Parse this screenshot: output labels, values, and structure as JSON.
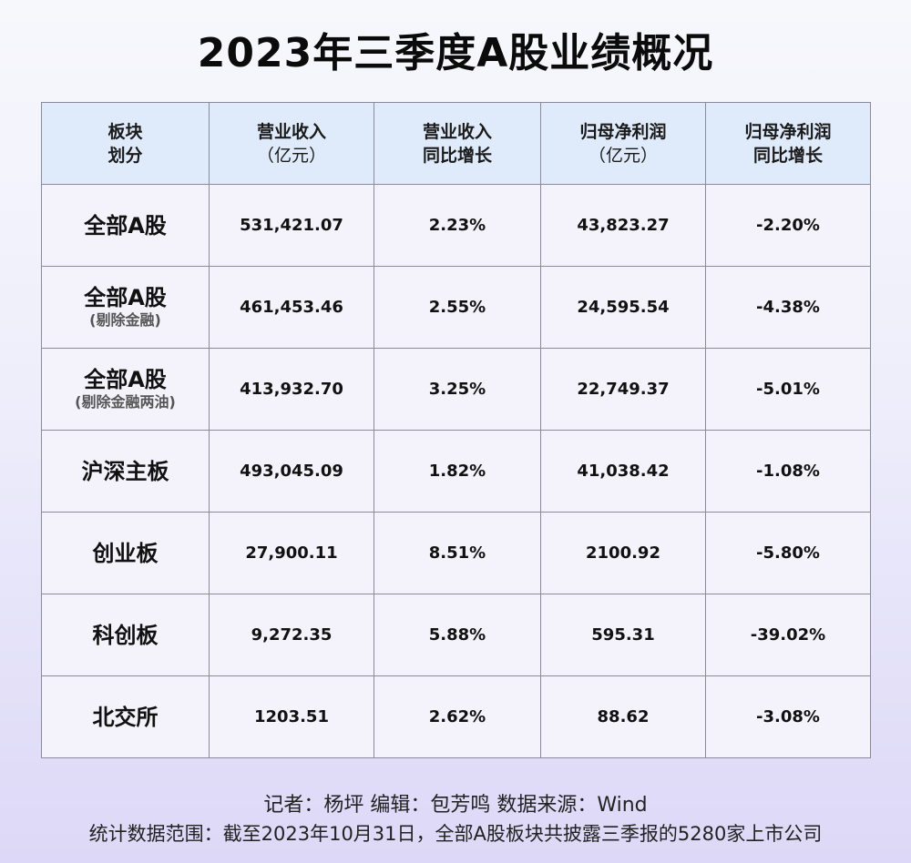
{
  "title": "2023年三季度A股业绩概况",
  "chart_data": {
    "type": "table",
    "columns": [
      {
        "line1": "板块",
        "line2": "划分"
      },
      {
        "line1": "营业收入",
        "line2": "（亿元）"
      },
      {
        "line1": "营业收入",
        "line2": "同比增长"
      },
      {
        "line1": "归母净利润",
        "line2": "（亿元）"
      },
      {
        "line1": "归母净利润",
        "line2": "同比增长"
      }
    ],
    "rows": [
      {
        "category": "全部A股",
        "note": "",
        "revenue": "531,421.07",
        "revenue_yoy": "2.23%",
        "net_profit": "43,823.27",
        "net_profit_yoy": "-2.20%"
      },
      {
        "category": "全部A股",
        "note": "(剔除金融)",
        "revenue": "461,453.46",
        "revenue_yoy": "2.55%",
        "net_profit": "24,595.54",
        "net_profit_yoy": "-4.38%"
      },
      {
        "category": "全部A股",
        "note": "(剔除金融两油)",
        "revenue": "413,932.70",
        "revenue_yoy": "3.25%",
        "net_profit": "22,749.37",
        "net_profit_yoy": "-5.01%"
      },
      {
        "category": "沪深主板",
        "note": "",
        "revenue": "493,045.09",
        "revenue_yoy": "1.82%",
        "net_profit": "41,038.42",
        "net_profit_yoy": "-1.08%"
      },
      {
        "category": "创业板",
        "note": "",
        "revenue": "27,900.11",
        "revenue_yoy": "8.51%",
        "net_profit": "2100.92",
        "net_profit_yoy": "-5.80%"
      },
      {
        "category": "科创板",
        "note": "",
        "revenue": "9,272.35",
        "revenue_yoy": "5.88%",
        "net_profit": "595.31",
        "net_profit_yoy": "-39.02%"
      },
      {
        "category": "北交所",
        "note": "",
        "revenue": "1203.51",
        "revenue_yoy": "2.62%",
        "net_profit": "88.62",
        "net_profit_yoy": "-3.08%"
      }
    ]
  },
  "footer": {
    "credits": "记者：杨坪  编辑：包芳鸣  数据来源：Wind",
    "scope": "统计数据范围：截至2023年10月31日，全部A股板块共披露三季报的5280家上市公司"
  },
  "colors": {
    "header_bg": "#dfeafb",
    "cell_bg": "#f4f3fb",
    "border": "#8a8a98"
  }
}
